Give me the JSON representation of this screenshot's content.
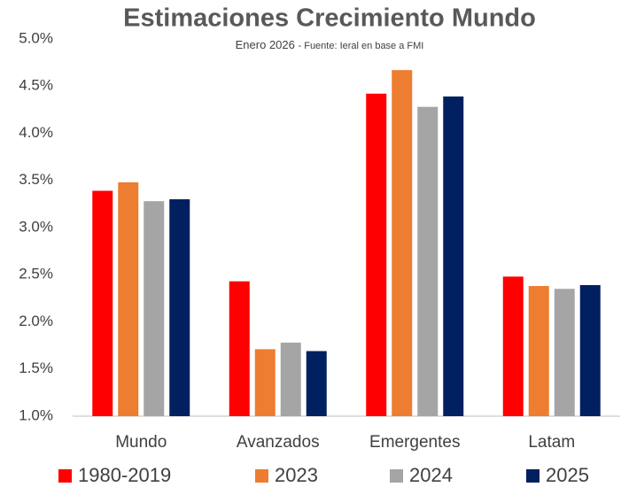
{
  "chart_data": {
    "type": "bar",
    "title": "Estimaciones Crecimiento Mundo",
    "subtitle": "Enero 2026",
    "source": "- Fuente: Ieral en base a FMI",
    "categories": [
      "Mundo",
      "Avanzados",
      "Emergentes",
      "Latam"
    ],
    "series": [
      {
        "name": "1980-2019",
        "color": "#ff0000",
        "values": [
          3.39,
          2.43,
          4.42,
          2.48
        ]
      },
      {
        "name": "2023",
        "color": "#ed7d31",
        "values": [
          3.48,
          1.71,
          4.67,
          2.38
        ]
      },
      {
        "name": "2024",
        "color": "#a5a5a5",
        "values": [
          3.28,
          1.78,
          4.28,
          2.35
        ]
      },
      {
        "name": "2025",
        "color": "#002060",
        "values": [
          3.3,
          1.69,
          4.39,
          2.39
        ]
      }
    ],
    "ylim": [
      1.0,
      5.0
    ],
    "yticks": [
      {
        "value": 1.0,
        "label": "1.0%"
      },
      {
        "value": 1.5,
        "label": "1.5%"
      },
      {
        "value": 2.0,
        "label": "2.0%"
      },
      {
        "value": 2.5,
        "label": "2.5%"
      },
      {
        "value": 3.0,
        "label": "3.0%"
      },
      {
        "value": 3.5,
        "label": "3.5%"
      },
      {
        "value": 4.0,
        "label": "4.0%"
      },
      {
        "value": 4.5,
        "label": "4.5%"
      },
      {
        "value": 5.0,
        "label": "5.0%"
      }
    ],
    "grid": false,
    "legend": "bottom"
  }
}
